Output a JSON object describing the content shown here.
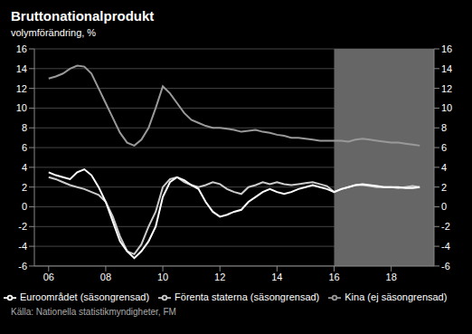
{
  "chart_data": {
    "type": "line",
    "title": "Bruttonationalprodukt",
    "subtitle": "volymförändring, %",
    "annotations": [
      "Källa: Nationella statistikmyndigheter, FM"
    ],
    "x": [
      6.0,
      6.25,
      6.5,
      6.75,
      7.0,
      7.25,
      7.5,
      7.75,
      8.0,
      8.25,
      8.5,
      8.75,
      9.0,
      9.25,
      9.5,
      9.75,
      10.0,
      10.25,
      10.5,
      10.75,
      11.0,
      11.25,
      11.5,
      11.75,
      12.0,
      12.25,
      12.5,
      12.75,
      13.0,
      13.25,
      13.5,
      13.75,
      14.0,
      14.25,
      14.5,
      14.75,
      15.0,
      15.25,
      15.5,
      15.75,
      16.0,
      16.25,
      16.5,
      16.75,
      17.0,
      17.25,
      17.5,
      17.75,
      18.0,
      18.25,
      18.5,
      18.75,
      19.0
    ],
    "series": [
      {
        "name": "Kina (ej säsongrensad)",
        "color": "#999999",
        "values": [
          13.0,
          13.2,
          13.5,
          14.0,
          14.3,
          14.2,
          13.5,
          12.0,
          10.5,
          9.0,
          7.5,
          6.5,
          6.2,
          6.8,
          8.0,
          10.0,
          12.2,
          11.5,
          10.5,
          9.5,
          8.8,
          8.5,
          8.2,
          8.0,
          8.0,
          7.9,
          7.8,
          7.6,
          7.7,
          7.8,
          7.6,
          7.5,
          7.3,
          7.2,
          7.0,
          7.0,
          6.9,
          6.8,
          6.7,
          6.7,
          6.7,
          6.7,
          6.6,
          6.8,
          6.9,
          6.8,
          6.7,
          6.6,
          6.5,
          6.5,
          6.4,
          6.3,
          6.2
        ]
      },
      {
        "name": "Förenta staterna (säsongrensad)",
        "color": "#cccccc",
        "values": [
          3.0,
          2.8,
          2.5,
          2.2,
          2.0,
          1.8,
          1.5,
          1.2,
          0.5,
          -1.0,
          -3.0,
          -4.5,
          -4.8,
          -3.8,
          -2.0,
          -0.5,
          2.0,
          2.8,
          3.0,
          2.5,
          2.2,
          2.0,
          2.2,
          2.5,
          2.3,
          1.8,
          1.5,
          1.3,
          2.0,
          2.2,
          2.5,
          2.3,
          2.5,
          2.3,
          2.2,
          2.3,
          2.4,
          2.5,
          2.3,
          2.1,
          1.5,
          1.8,
          2.0,
          2.2,
          2.2,
          2.1,
          2.0,
          2.0,
          2.0,
          1.9,
          2.0,
          2.1,
          2.0
        ]
      },
      {
        "name": "Euroområdet (säsongrensad)",
        "color": "#ffffff",
        "values": [
          3.5,
          3.2,
          3.0,
          2.8,
          3.5,
          3.8,
          3.2,
          2.0,
          0.5,
          -1.5,
          -3.5,
          -4.5,
          -5.2,
          -4.5,
          -3.5,
          -2.0,
          1.0,
          2.5,
          3.0,
          2.7,
          2.2,
          1.8,
          0.5,
          -0.5,
          -1.0,
          -0.8,
          -0.5,
          -0.3,
          0.5,
          1.0,
          1.5,
          1.8,
          1.5,
          1.3,
          1.5,
          1.8,
          2.0,
          2.2,
          2.0,
          1.8,
          1.5,
          1.8,
          2.0,
          2.2,
          2.3,
          2.2,
          2.1,
          2.0,
          2.0,
          2.0,
          1.9,
          1.9,
          2.0
        ]
      }
    ],
    "xlim": [
      5.5,
      19.5
    ],
    "xticks": [
      {
        "value": 6,
        "label": "06"
      },
      {
        "value": 8,
        "label": "08"
      },
      10,
      12,
      14,
      16,
      18
    ],
    "ylim": [
      -6,
      16
    ],
    "yticks": [
      -6,
      -4,
      -2,
      0,
      2,
      4,
      6,
      8,
      10,
      12,
      14,
      16
    ],
    "y2lim": [
      -6,
      16
    ],
    "y2ticks": [
      -6,
      -4,
      -2,
      0,
      2,
      4,
      6,
      8,
      10,
      12,
      14,
      16
    ],
    "shade": {
      "from": 16.0,
      "to": 19.5,
      "color": "#666666"
    },
    "grid": true,
    "legend": "bottom"
  }
}
